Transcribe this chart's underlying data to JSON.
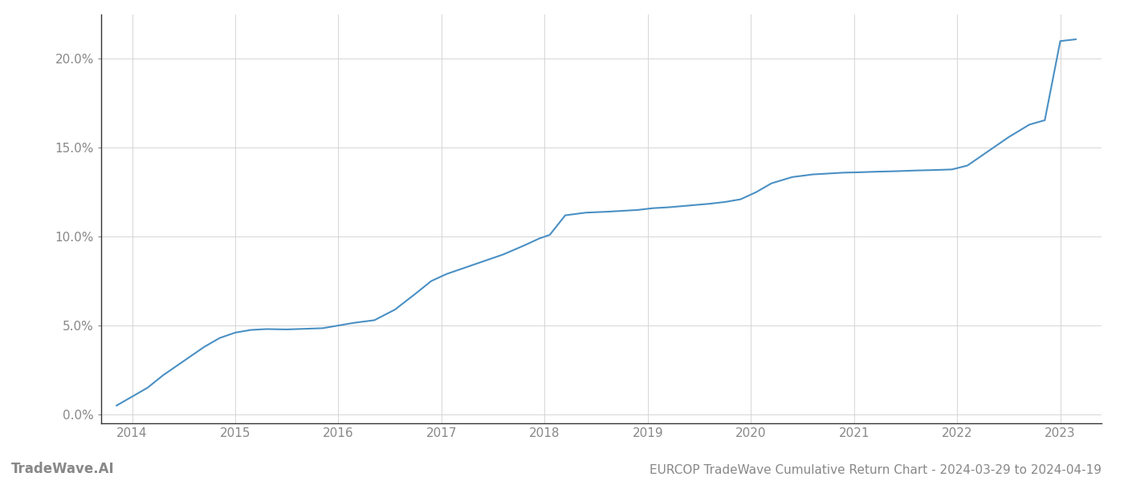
{
  "title": "EURCOP TradeWave Cumulative Return Chart - 2024-03-29 to 2024-04-19",
  "watermark": "TradeWave.AI",
  "line_color": "#4a90c4",
  "background_color": "#ffffff",
  "grid_color": "#d0d0d0",
  "x_values": [
    2013.85,
    2014.0,
    2014.15,
    2014.3,
    2014.5,
    2014.7,
    2014.85,
    2015.0,
    2015.15,
    2015.3,
    2015.5,
    2015.7,
    2015.85,
    2016.0,
    2016.15,
    2016.35,
    2016.55,
    2016.75,
    2016.9,
    2017.05,
    2017.2,
    2017.4,
    2017.6,
    2017.8,
    2017.95,
    2018.05,
    2018.2,
    2018.4,
    2018.6,
    2018.75,
    2018.9,
    2019.05,
    2019.2,
    2019.4,
    2019.6,
    2019.75,
    2019.9,
    2020.05,
    2020.2,
    2020.4,
    2020.6,
    2020.75,
    2020.9,
    2021.05,
    2021.2,
    2021.4,
    2021.6,
    2021.8,
    2021.95,
    2022.1,
    2022.3,
    2022.5,
    2022.7,
    2022.85,
    2023.0,
    2023.15
  ],
  "y_values": [
    0.5,
    1.0,
    1.5,
    2.2,
    3.0,
    3.8,
    4.3,
    4.6,
    4.75,
    4.8,
    4.78,
    4.82,
    4.85,
    5.0,
    5.15,
    5.3,
    5.9,
    6.8,
    7.5,
    7.9,
    8.2,
    8.6,
    9.0,
    9.5,
    9.9,
    10.1,
    11.2,
    11.35,
    11.4,
    11.45,
    11.5,
    11.6,
    11.65,
    11.75,
    11.85,
    11.95,
    12.1,
    12.5,
    13.0,
    13.35,
    13.5,
    13.55,
    13.6,
    13.62,
    13.65,
    13.68,
    13.72,
    13.75,
    13.78,
    14.0,
    14.8,
    15.6,
    16.3,
    16.55,
    21.0,
    21.1
  ],
  "xlim": [
    2013.7,
    2023.4
  ],
  "ylim": [
    -0.5,
    22.5
  ],
  "xticks": [
    2014,
    2015,
    2016,
    2017,
    2018,
    2019,
    2020,
    2021,
    2022,
    2023
  ],
  "yticks": [
    0.0,
    5.0,
    10.0,
    15.0,
    20.0
  ],
  "ytick_labels": [
    "0.0%",
    "5.0%",
    "10.0%",
    "15.0%",
    "20.0%"
  ],
  "line_width": 1.5,
  "tick_color": "#888888",
  "spine_color": "#333333",
  "title_fontsize": 11,
  "watermark_fontsize": 12,
  "tick_fontsize": 11
}
